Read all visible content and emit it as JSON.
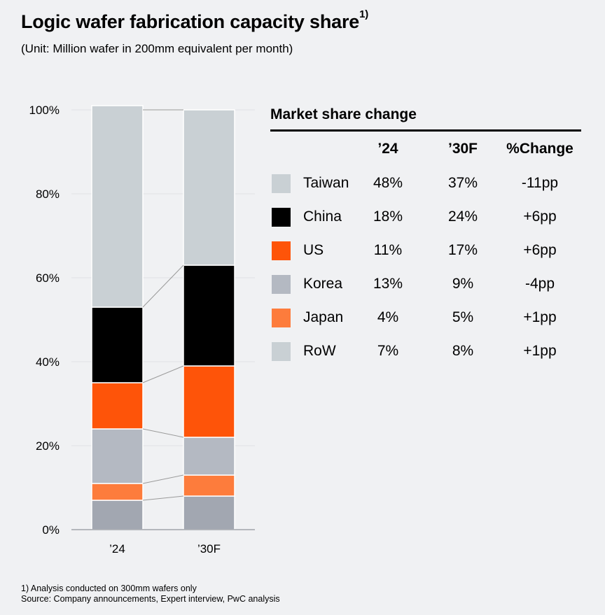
{
  "header": {
    "title": "Logic wafer fabrication capacity share",
    "title_superscript": "1)",
    "subtitle": "(Unit: Million wafer in 200mm equivalent per month)"
  },
  "legend": {
    "title": "Market share change",
    "columns": [
      "’24",
      "’30F",
      "%Change"
    ],
    "rows": [
      {
        "name": "Taiwan",
        "v24": "48%",
        "v30": "37%",
        "change": "-11pp",
        "swatch": "#c9d0d4"
      },
      {
        "name": "China",
        "v24": "18%",
        "v30": "24%",
        "change": "+6pp",
        "swatch": "#000000"
      },
      {
        "name": "US",
        "v24": "11%",
        "v30": "17%",
        "change": "+6pp",
        "swatch": "#fe5409"
      },
      {
        "name": "Korea",
        "v24": "13%",
        "v30": "9%",
        "change": "-4pp",
        "swatch": "#b4b9c2"
      },
      {
        "name": "Japan",
        "v24": "4%",
        "v30": "5%",
        "change": "+1pp",
        "swatch": "#fd7c3c"
      },
      {
        "name": "RoW",
        "v24": "7%",
        "v30": "8%",
        "change": "+1pp",
        "swatch": "#c9d0d4"
      }
    ]
  },
  "chart_data": {
    "type": "bar",
    "stacked": true,
    "normalized": true,
    "title": "Logic wafer fabrication capacity share",
    "subtitle": "(Unit: Million wafer in 200mm equivalent per month)",
    "categories": [
      "’24",
      "’30F"
    ],
    "ylim": [
      0,
      100
    ],
    "yticks": [
      0,
      20,
      40,
      60,
      80,
      100
    ],
    "ytick_labels": [
      "0%",
      "20%",
      "40%",
      "60%",
      "80%",
      "100%"
    ],
    "xlabel": "",
    "ylabel": "",
    "grid": true,
    "connector_lines": true,
    "series": [
      {
        "name": "RoW",
        "values": [
          7,
          8
        ],
        "color": "#a2a7b1"
      },
      {
        "name": "Japan",
        "values": [
          4,
          5
        ],
        "color": "#fd7c3c"
      },
      {
        "name": "Korea",
        "values": [
          13,
          9
        ],
        "color": "#b4b9c2"
      },
      {
        "name": "US",
        "values": [
          11,
          17
        ],
        "color": "#fe5409"
      },
      {
        "name": "China",
        "values": [
          18,
          24
        ],
        "color": "#000000"
      },
      {
        "name": "Taiwan",
        "values": [
          48,
          37
        ],
        "color": "#c9d0d4"
      }
    ]
  },
  "footnotes": {
    "note": "1) Analysis conducted on 300mm wafers only",
    "source": "Source: Company announcements, Expert interview, PwC analysis"
  }
}
